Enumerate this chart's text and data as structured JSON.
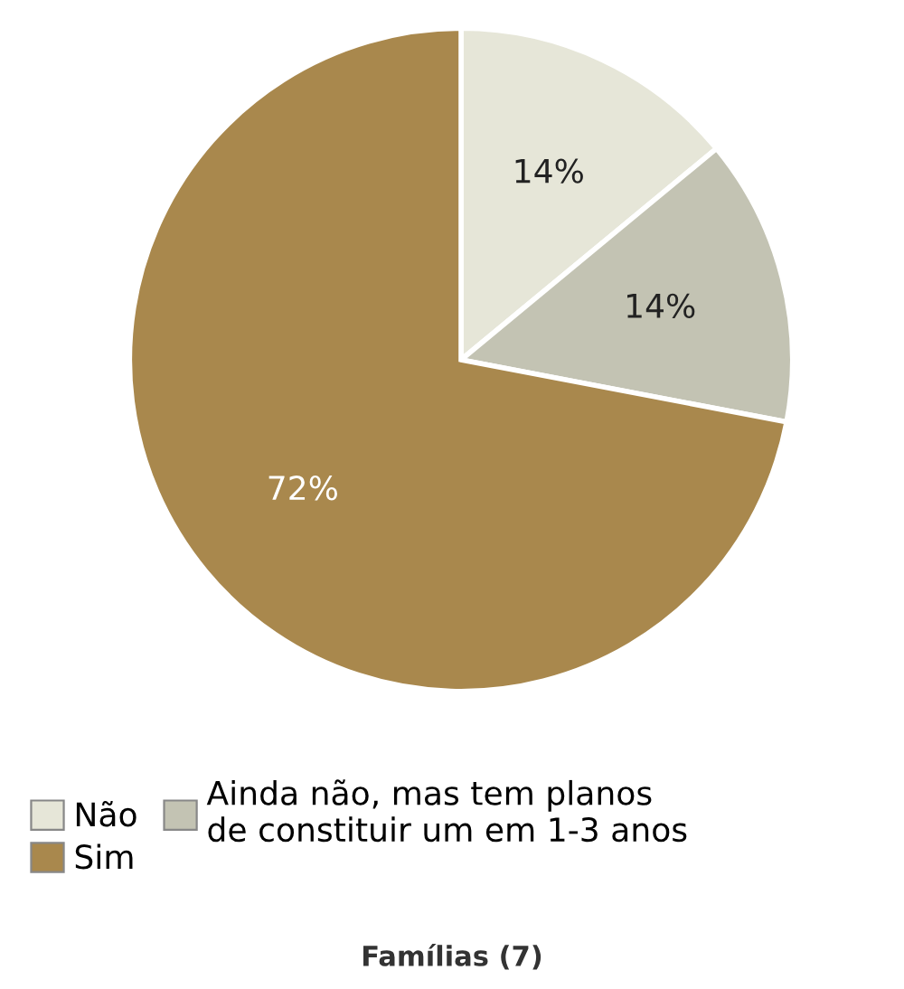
{
  "chart_data": {
    "type": "pie",
    "title": "Famílias (7)",
    "categories": [
      "Não",
      "Ainda não, mas tem planos\nde constituir um em 1-3 anos",
      "Sim"
    ],
    "values": [
      14,
      14,
      72
    ],
    "colors": [
      "#e6e6d8",
      "#c3c3b3",
      "#a9884d"
    ],
    "value_labels": [
      "14%",
      "14%",
      "72%"
    ],
    "legend": "bottom"
  }
}
